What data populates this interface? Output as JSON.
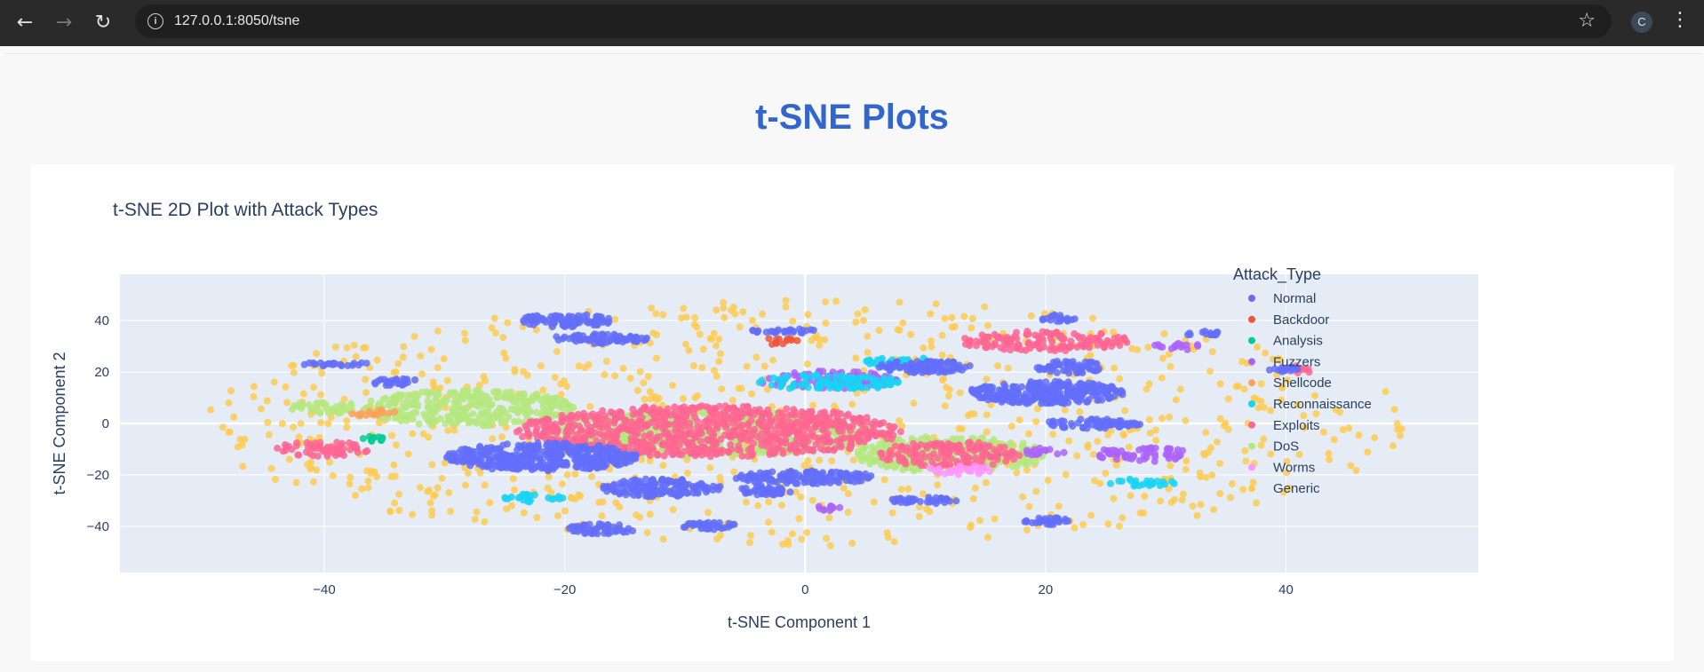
{
  "browser": {
    "url": "127.0.0.1:8050/tsne",
    "profile_initial": "C",
    "icons": [
      "back-arrow-icon",
      "forward-arrow-icon",
      "reload-icon",
      "site-info-icon",
      "bookmark-star-icon",
      "kebab-menu-icon"
    ]
  },
  "page": {
    "title": "t-SNE Plots"
  },
  "colors": {
    "title": "#3366cc",
    "plot_bg": "#e5ecf6",
    "Normal": "#636efa",
    "Backdoor": "#EF553B",
    "Analysis": "#00cc96",
    "Fuzzers": "#ab63fa",
    "Shellcode": "#FFA15A",
    "Reconnaissance": "#19d3f3",
    "Exploits": "#FF6692",
    "DoS": "#B6E880",
    "Worms": "#FF97FF",
    "Generic": "#FECB52"
  },
  "chart_data": {
    "type": "scatter",
    "title": "t-SNE 2D Plot with Attack Types",
    "xlabel": "t-SNE Component 1",
    "ylabel": "t-SNE Component 2",
    "xlim": [
      -57,
      56
    ],
    "ylim": [
      -58,
      58
    ],
    "xticks": [
      -40,
      -20,
      0,
      20,
      40
    ],
    "yticks": [
      -40,
      -20,
      0,
      20,
      40
    ],
    "tick_labels_x": [
      "−40",
      "−20",
      "0",
      "20",
      "40"
    ],
    "tick_labels_y": [
      "−40",
      "−20",
      "0",
      "20",
      "40"
    ],
    "grid": true,
    "legend_title": "Attack_Type",
    "legend_position": "right",
    "series": [
      {
        "name": "Normal",
        "clusters": [
          {
            "x": -22,
            "y": -13,
            "rx": 8,
            "ry": 5.5
          },
          {
            "x": -12,
            "y": -25,
            "rx": 5,
            "ry": 3.5
          },
          {
            "x": 0,
            "y": -21,
            "rx": 6,
            "ry": 2.5
          },
          {
            "x": 20,
            "y": 12,
            "rx": 6.5,
            "ry": 4.5
          },
          {
            "x": 22,
            "y": 22,
            "rx": 3,
            "ry": 2.5
          },
          {
            "x": 10,
            "y": 22,
            "rx": 4,
            "ry": 2.5
          },
          {
            "x": -17,
            "y": 33,
            "rx": 4,
            "ry": 2
          },
          {
            "x": -20,
            "y": 40,
            "rx": 4,
            "ry": 2.5
          },
          {
            "x": -17,
            "y": -41,
            "rx": 3,
            "ry": 2
          },
          {
            "x": 21,
            "y": 41,
            "rx": 1.5,
            "ry": 1.5
          },
          {
            "x": 33,
            "y": 35,
            "rx": 1.5,
            "ry": 1
          },
          {
            "x": 40,
            "y": 21,
            "rx": 1.5,
            "ry": 1
          },
          {
            "x": -34,
            "y": 16,
            "rx": 2,
            "ry": 1.5
          },
          {
            "x": -39,
            "y": 23,
            "rx": 3,
            "ry": 0.8
          },
          {
            "x": -8,
            "y": -40,
            "rx": 2.5,
            "ry": 1.5
          },
          {
            "x": 10,
            "y": -30,
            "rx": 3,
            "ry": 1.5
          },
          {
            "x": -2,
            "y": 36,
            "rx": 3,
            "ry": 1
          },
          {
            "x": 24,
            "y": 0,
            "rx": 4,
            "ry": 2
          },
          {
            "x": -3,
            "y": -26,
            "rx": 2.5,
            "ry": 2
          },
          {
            "x": 20,
            "y": -38,
            "rx": 2,
            "ry": 1.5
          }
        ]
      },
      {
        "name": "Backdoor",
        "clusters": [
          {
            "x": -2,
            "y": 32,
            "rx": 1.5,
            "ry": 1.5
          }
        ]
      },
      {
        "name": "Analysis",
        "clusters": [
          {
            "x": -36,
            "y": -6,
            "rx": 1,
            "ry": 1
          }
        ]
      },
      {
        "name": "Fuzzers",
        "clusters": [
          {
            "x": 28,
            "y": -12,
            "rx": 4,
            "ry": 3
          },
          {
            "x": 2,
            "y": 17,
            "rx": 6,
            "ry": 3.5
          },
          {
            "x": 20,
            "y": -11,
            "rx": 2,
            "ry": 1.5
          },
          {
            "x": 31,
            "y": 30,
            "rx": 2,
            "ry": 1.5
          },
          {
            "x": 2,
            "y": -33,
            "rx": 1.5,
            "ry": 1
          }
        ]
      },
      {
        "name": "Shellcode",
        "clusters": [
          {
            "x": -36,
            "y": 4,
            "rx": 2,
            "ry": 1.5
          }
        ]
      },
      {
        "name": "Reconnaissance",
        "clusters": [
          {
            "x": 2,
            "y": 16,
            "rx": 6,
            "ry": 3
          },
          {
            "x": -23,
            "y": -29,
            "rx": 3,
            "ry": 1.5
          },
          {
            "x": 28,
            "y": -23,
            "rx": 3,
            "ry": 1.5
          },
          {
            "x": 8,
            "y": 24,
            "rx": 3,
            "ry": 2
          }
        ]
      },
      {
        "name": "Exploits",
        "clusters": [
          {
            "x": -8,
            "y": -3,
            "rx": 16,
            "ry": 10
          },
          {
            "x": -40,
            "y": -10,
            "rx": 4,
            "ry": 3
          },
          {
            "x": 20,
            "y": 32,
            "rx": 7,
            "ry": 4
          },
          {
            "x": 41,
            "y": 21,
            "rx": 1.5,
            "ry": 1.5
          },
          {
            "x": 12,
            "y": -12,
            "rx": 6,
            "ry": 5
          }
        ]
      },
      {
        "name": "DoS",
        "clusters": [
          {
            "x": -28,
            "y": 6,
            "rx": 9,
            "ry": 7
          },
          {
            "x": -8,
            "y": -4,
            "rx": 14,
            "ry": 9
          },
          {
            "x": 12,
            "y": -12,
            "rx": 8,
            "ry": 7
          },
          {
            "x": -40,
            "y": 6,
            "rx": 3,
            "ry": 2.5
          }
        ]
      },
      {
        "name": "Worms",
        "clusters": [
          {
            "x": 13,
            "y": -18,
            "rx": 3,
            "ry": 2
          }
        ]
      },
      {
        "name": "Generic",
        "clusters": [
          {
            "x": 0,
            "y": 0,
            "rx": 50,
            "ry": 50
          }
        ]
      }
    ]
  }
}
